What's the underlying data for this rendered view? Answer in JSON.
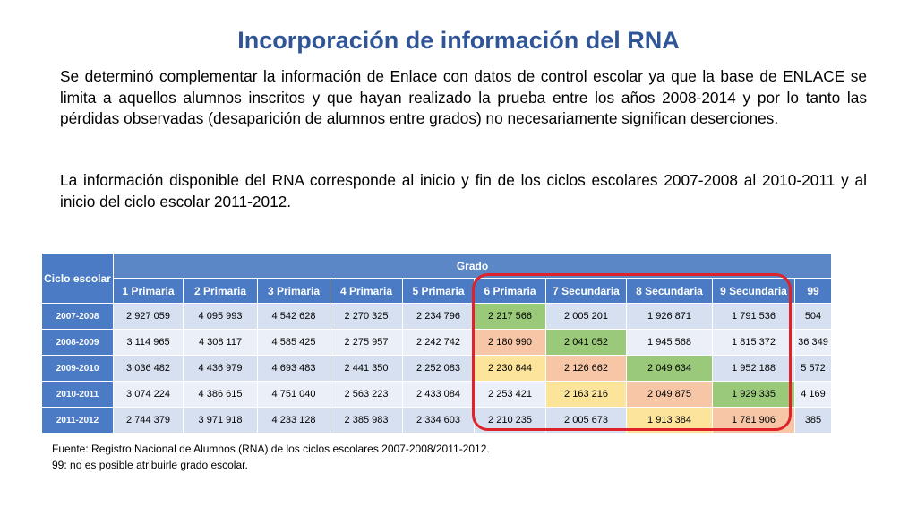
{
  "title": "Incorporación de información del RNA",
  "paragraphs": [
    "Se determinó complementar la información de Enlace con datos de control escolar ya que la base de ENLACE se limita a aquellos alumnos inscritos y que hayan realizado la prueba entre los años 2008-2014 y por lo tanto las pérdidas observadas (desaparición de alumnos entre grados) no necesariamente significan deserciones.",
    "La información disponible del RNA corresponde al inicio y fin de los ciclos escolares 2007-2008 al 2010-2011 y al inicio del ciclo escolar 2011-2012."
  ],
  "table": {
    "ciclo_header": "Ciclo escolar",
    "grado_header": "Grado",
    "grades": [
      "1 Primaria",
      "2 Primaria",
      "3 Primaria",
      "4 Primaria",
      "5 Primaria",
      "6 Primaria",
      "7 Secundaria",
      "8 Secundaria",
      "9 Secundaria",
      "99"
    ],
    "rows": [
      {
        "year": "2007-2008",
        "values": [
          "2 927 059",
          "4 095 993",
          "4 542 628",
          "2 270 325",
          "2 234 796",
          "2 217 566",
          "2 005 201",
          "1 926 871",
          "1 791 536",
          "504"
        ]
      },
      {
        "year": "2008-2009",
        "values": [
          "3 114 965",
          "4 308 117",
          "4 585 425",
          "2 275 957",
          "2 242 742",
          "2 180 990",
          "2 041 052",
          "1 945 568",
          "1 815 372",
          "36 349"
        ]
      },
      {
        "year": "2009-2010",
        "values": [
          "3 036 482",
          "4 436 979",
          "4 693 483",
          "2 441 350",
          "2 252 083",
          "2 230 844",
          "2 126 662",
          "2 049 634",
          "1 952 188",
          "5 572"
        ]
      },
      {
        "year": "2010-2011",
        "values": [
          "3 074 224",
          "4 386 615",
          "4 751 040",
          "2 563 223",
          "2 433 084",
          "2 253 421",
          "2 163 216",
          "2 049 875",
          "1 929 335",
          "4 169"
        ]
      },
      {
        "year": "2011-2012",
        "values": [
          "2 744 379",
          "3 971 918",
          "4 233 128",
          "2 385 983",
          "2 334 603",
          "2 210 235",
          "2 005 673",
          "1 913 384",
          "1 781 906",
          "385"
        ]
      }
    ],
    "cell_colors": {
      "green": "#9bc97a",
      "orange": "#f6c6a7",
      "yellow": "#fce49a",
      "header_blue": "#4a7bc4",
      "row_light": "#ebf0f8",
      "row_dark": "#d6e0f0",
      "highlight_border": "#e0222a"
    }
  },
  "footnotes": [
    "Fuente: Registro Nacional de Alumnos (RNA) de los ciclos escolares 2007-2008/2011-2012.",
    "99: no es posible atribuirle grado escolar."
  ]
}
